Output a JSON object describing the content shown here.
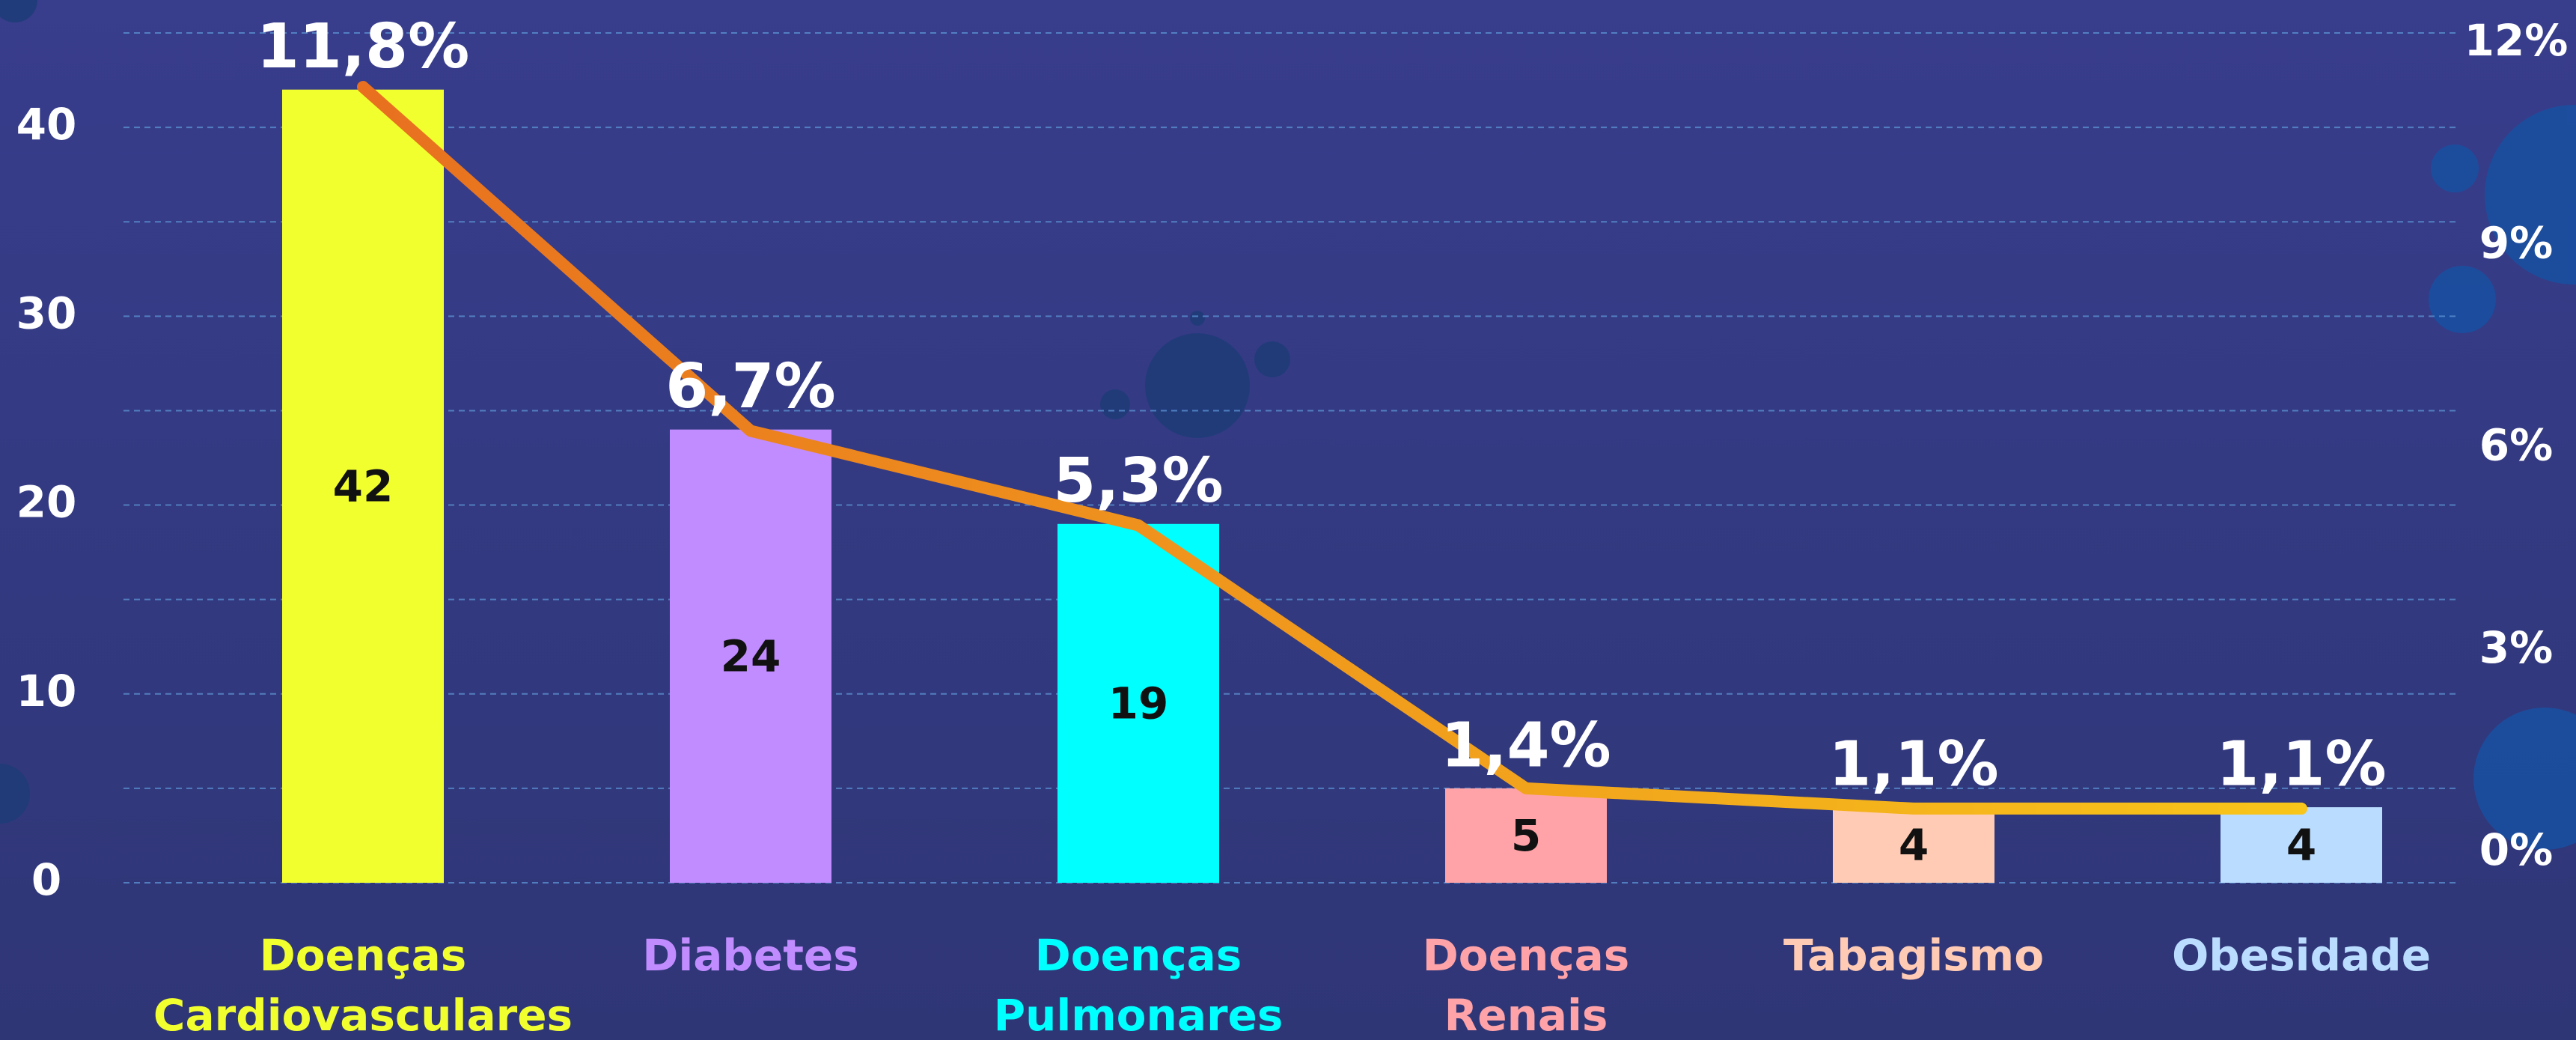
{
  "chart_data": {
    "type": "bar_line",
    "categories": [
      "Doenças Cardiovasculares",
      "Diabetes",
      "Doenças Pulmonares",
      "Doenças Renais",
      "Tabagismo",
      "Obesidade"
    ],
    "series": [
      {
        "type": "bar",
        "colors": [
          "#f2ff2f",
          "#c18cff",
          "#00ffff",
          "#ffa3a8",
          "#ffcbb4",
          "#b9dcff"
        ],
        "values": [
          42,
          24,
          19,
          5,
          4,
          4
        ]
      },
      {
        "type": "line",
        "axis": "y2",
        "color": [
          "#e8701f",
          "#f8c51a"
        ],
        "values": [
          11.8,
          6.7,
          5.3,
          1.4,
          1.1,
          1.1
        ],
        "value_labels": [
          "11,8%",
          "6,7%",
          "5,3%",
          "1,4%",
          "1,1%",
          "1,1%"
        ]
      }
    ],
    "ylim": [
      0,
      45
    ],
    "yticks": [
      0,
      10,
      20,
      30,
      40
    ],
    "minor_yticks": [
      5,
      15,
      25,
      35,
      45
    ],
    "y2lim": [
      0,
      12.6
    ],
    "y2ticks": [
      {
        "value": 0,
        "label": "0%"
      },
      {
        "value": 3,
        "label": "3%"
      },
      {
        "value": 6,
        "label": "6%"
      },
      {
        "value": 9,
        "label": "9%"
      },
      {
        "value": 12,
        "label": "12%"
      }
    ],
    "grid": true
  }
}
